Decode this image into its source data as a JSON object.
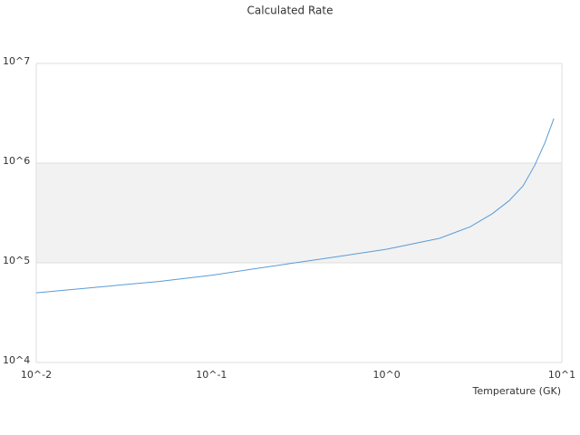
{
  "chart_data": {
    "type": "line",
    "title": "Calculated Rate",
    "x_label": "Temperature (GK)",
    "xscale": "log",
    "yscale": "log",
    "xlim": [
      0.01,
      10
    ],
    "ylim": [
      10000,
      10000000
    ],
    "xticks": [
      {
        "value": 0.01,
        "label": "10^-2"
      },
      {
        "value": 0.1,
        "label": "10^-1"
      },
      {
        "value": 1,
        "label": "10^0"
      },
      {
        "value": 10,
        "label": "10^1"
      }
    ],
    "yticks": [
      {
        "value": 10000,
        "label": "10^4"
      },
      {
        "value": 100000,
        "label": "10^5"
      },
      {
        "value": 1000000,
        "label": "10^6"
      },
      {
        "value": 10000000,
        "label": "10^7"
      }
    ],
    "x": [
      0.01,
      0.02,
      0.05,
      0.1,
      0.2,
      0.3,
      0.5,
      1,
      2,
      3,
      4,
      5,
      6,
      7,
      8,
      9
    ],
    "series": [
      {
        "color": "#5b9bd5",
        "values": [
          50000,
          56000,
          65000,
          75000,
          90000,
          100000,
          114000,
          137000,
          176000,
          230000,
          310000,
          420000,
          590000,
          950000,
          1600000,
          2800000
        ]
      }
    ]
  }
}
